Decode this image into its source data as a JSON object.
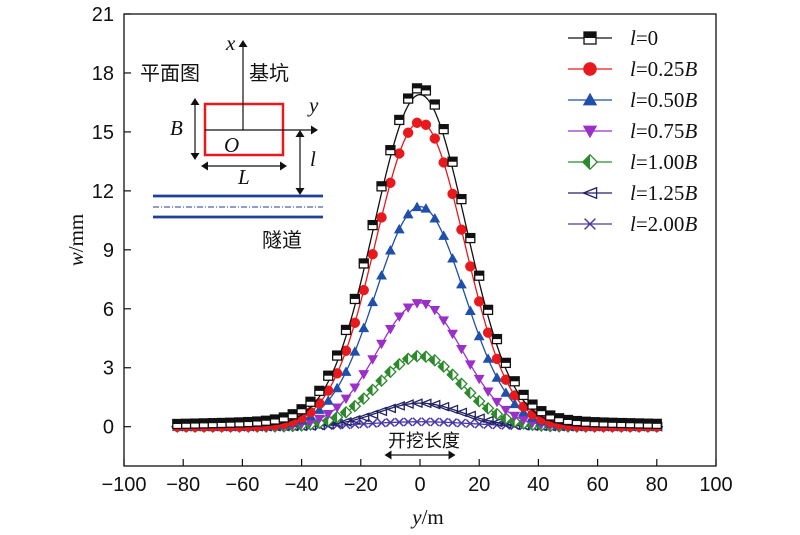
{
  "chart_data": {
    "type": "line",
    "xlabel": {
      "var": "y",
      "unit": "/m"
    },
    "ylabel": {
      "var": "w",
      "unit": "/mm"
    },
    "xlim": [
      -100,
      100
    ],
    "ylim": [
      -2,
      21
    ],
    "xticks": [
      "−100",
      "−80",
      "−60",
      "−40",
      "−20",
      "0",
      "20",
      "40",
      "60",
      "80",
      "100"
    ],
    "yticks": [
      "0",
      "3",
      "6",
      "9",
      "12",
      "15",
      "18",
      "21"
    ],
    "ytick_values": [
      0,
      3,
      6,
      9,
      12,
      15,
      18,
      21
    ],
    "xtick_values": [
      -100,
      -80,
      -60,
      -40,
      -20,
      0,
      20,
      40,
      60,
      80,
      100
    ],
    "grid": false,
    "legend_position": "top-right",
    "x_marker_range": [
      -82,
      82
    ],
    "x_marker_step": 3,
    "series": [
      {
        "name": "l=0",
        "prefix": "l",
        "rest": "=0",
        "color": "#111111",
        "marker": "square-halffilled",
        "peak": 16.9,
        "sigma": 15.5,
        "marker_offset": 0.35
      },
      {
        "name": "l=0.25B",
        "prefix": "l",
        "rest": "=0.25",
        "suffix": "B",
        "color": "#e8191c",
        "marker": "circle",
        "peak": 15.5,
        "sigma": 15.0,
        "marker_offset": 0.0
      },
      {
        "name": "l=0.50B",
        "prefix": "l",
        "rest": "=0.50",
        "suffix": "B",
        "color": "#1f4faa",
        "marker": "triangle-up",
        "peak": 11.2,
        "sigma": 15.0,
        "marker_offset": 0.0
      },
      {
        "name": "l=0.75B",
        "prefix": "l",
        "rest": "=0.75",
        "suffix": "B",
        "color": "#9b30c8",
        "marker": "triangle-down",
        "peak": 6.3,
        "sigma": 14.5,
        "marker_offset": 0.0
      },
      {
        "name": "l=1.00B",
        "prefix": "l",
        "rest": "=1.00",
        "suffix": "B",
        "color": "#2c8a2c",
        "marker": "diamond-half",
        "peak": 3.6,
        "sigma": 14.0,
        "marker_offset": 0.0
      },
      {
        "name": "l=1.25B",
        "prefix": "l",
        "rest": "=1.25",
        "suffix": "B",
        "color": "#222266",
        "marker": "triangle-left-open",
        "peak": 1.2,
        "sigma": 14.0,
        "marker_offset": 0.0
      },
      {
        "name": "l=2.00B",
        "prefix": "l",
        "rest": "=2.00",
        "suffix": "B",
        "color": "#4a3aa8",
        "marker": "x",
        "peak": 0.25,
        "sigma": 18.0,
        "marker_offset": 0.0
      }
    ],
    "annotation": {
      "text": "开挖长度",
      "x_from": -12,
      "x_to": 12,
      "y": -1.4
    },
    "inset": {
      "plan_label": "平面图",
      "pit_label": "基坑",
      "tunnel_label": "隧道",
      "x_axis": "x",
      "y_axis": "y",
      "origin": "O",
      "width_label": "B",
      "length_label": "L",
      "distance_label": "l",
      "pit_color": "#e8191c",
      "tunnel_color": "#1f3f9a"
    }
  }
}
